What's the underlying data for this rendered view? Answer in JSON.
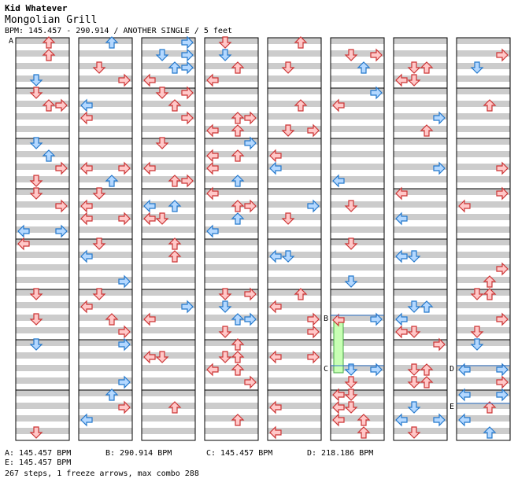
{
  "header": {
    "author": "Kid Whatever",
    "song_title": "Mongolian Grill",
    "info": "BPM: 145.457 - 290.914 / ANOTHER SINGLE / 5 feet"
  },
  "markers": [
    "A",
    "B",
    "C",
    "D",
    "E"
  ],
  "bpm_changes": [
    {
      "label": "A: 145.457 BPM"
    },
    {
      "label": "B: 290.914 BPM"
    },
    {
      "label": "C: 145.457 BPM"
    },
    {
      "label": "D: 218.186 BPM"
    },
    {
      "label": "E: 145.457 BPM"
    }
  ],
  "summary": "267 steps, 1 freeze arrows, max combo 288",
  "colors": {
    "stripe": "#cccccc",
    "red_arrow_fill": "#ffc8c8",
    "red_arrow_stroke": "#cc3333",
    "blue_arrow_fill": "#b4d8ff",
    "blue_arrow_stroke": "#2277cc",
    "freeze_fill": "#c8ffb4",
    "freeze_stroke": "#44aa44",
    "bpm_line": "#3377cc"
  },
  "chart_data": {
    "type": "step-chart",
    "columns_count": 8,
    "measures_per_column": 8,
    "lanes": [
      "left",
      "down",
      "up",
      "right"
    ],
    "steps_total": 267,
    "freeze_arrows": 1,
    "max_combo": 288
  }
}
